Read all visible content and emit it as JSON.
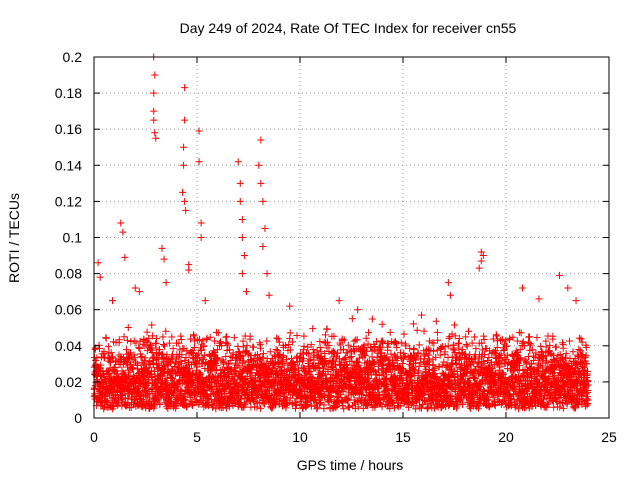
{
  "chart_data": {
    "type": "scatter",
    "title": "Day 249 of 2024, Rate Of TEC Index for receiver cn55",
    "xlabel": "GPS time / hours",
    "ylabel": "ROTI / TECUs",
    "xlim": [
      0,
      25
    ],
    "ylim": [
      0,
      0.2
    ],
    "x_ticks": [
      0,
      5,
      10,
      15,
      20,
      25
    ],
    "x_tick_labels": [
      "0",
      "5",
      "10",
      "15",
      "20",
      "25"
    ],
    "y_ticks": [
      0,
      0.02,
      0.04,
      0.06,
      0.08,
      0.1,
      0.12,
      0.14,
      0.16,
      0.18,
      0.2
    ],
    "y_tick_labels": [
      "0",
      "0.02",
      "0.04",
      "0.06",
      "0.08",
      "0.1",
      "0.12",
      "0.14",
      "0.16",
      "0.18",
      "0.2"
    ],
    "grid": true,
    "marker": "+",
    "marker_color": "#ff0000",
    "series": [
      {
        "name": "ROTI",
        "x_range": [
          0,
          24
        ],
        "typical_range": [
          0.005,
          0.045
        ],
        "baseline_median": 0.018,
        "notable_points": [
          {
            "x": 0.2,
            "y": 0.086
          },
          {
            "x": 0.3,
            "y": 0.078
          },
          {
            "x": 0.9,
            "y": 0.065
          },
          {
            "x": 1.3,
            "y": 0.108
          },
          {
            "x": 1.4,
            "y": 0.103
          },
          {
            "x": 1.5,
            "y": 0.089
          },
          {
            "x": 2.0,
            "y": 0.072
          },
          {
            "x": 2.2,
            "y": 0.07
          },
          {
            "x": 2.9,
            "y": 0.2
          },
          {
            "x": 2.95,
            "y": 0.19
          },
          {
            "x": 2.9,
            "y": 0.18
          },
          {
            "x": 2.9,
            "y": 0.17
          },
          {
            "x": 2.9,
            "y": 0.165
          },
          {
            "x": 2.95,
            "y": 0.158
          },
          {
            "x": 3.0,
            "y": 0.155
          },
          {
            "x": 3.3,
            "y": 0.094
          },
          {
            "x": 3.4,
            "y": 0.088
          },
          {
            "x": 3.5,
            "y": 0.075
          },
          {
            "x": 4.4,
            "y": 0.183
          },
          {
            "x": 4.4,
            "y": 0.165
          },
          {
            "x": 4.35,
            "y": 0.15
          },
          {
            "x": 4.35,
            "y": 0.14
          },
          {
            "x": 4.3,
            "y": 0.125
          },
          {
            "x": 4.4,
            "y": 0.12
          },
          {
            "x": 4.45,
            "y": 0.115
          },
          {
            "x": 4.6,
            "y": 0.085
          },
          {
            "x": 4.6,
            "y": 0.082
          },
          {
            "x": 5.1,
            "y": 0.159
          },
          {
            "x": 5.1,
            "y": 0.142
          },
          {
            "x": 5.2,
            "y": 0.108
          },
          {
            "x": 5.2,
            "y": 0.1
          },
          {
            "x": 5.4,
            "y": 0.065
          },
          {
            "x": 7.0,
            "y": 0.142
          },
          {
            "x": 7.1,
            "y": 0.13
          },
          {
            "x": 7.1,
            "y": 0.12
          },
          {
            "x": 7.2,
            "y": 0.11
          },
          {
            "x": 7.2,
            "y": 0.1
          },
          {
            "x": 7.3,
            "y": 0.09
          },
          {
            "x": 7.2,
            "y": 0.08
          },
          {
            "x": 7.4,
            "y": 0.07
          },
          {
            "x": 8.1,
            "y": 0.154
          },
          {
            "x": 8.0,
            "y": 0.14
          },
          {
            "x": 8.1,
            "y": 0.13
          },
          {
            "x": 8.2,
            "y": 0.12
          },
          {
            "x": 8.3,
            "y": 0.105
          },
          {
            "x": 8.2,
            "y": 0.095
          },
          {
            "x": 8.4,
            "y": 0.08
          },
          {
            "x": 8.5,
            "y": 0.068
          },
          {
            "x": 9.5,
            "y": 0.062
          },
          {
            "x": 11.9,
            "y": 0.065
          },
          {
            "x": 12.8,
            "y": 0.06
          },
          {
            "x": 15.9,
            "y": 0.057
          },
          {
            "x": 17.2,
            "y": 0.075
          },
          {
            "x": 17.3,
            "y": 0.068
          },
          {
            "x": 18.8,
            "y": 0.092
          },
          {
            "x": 18.8,
            "y": 0.087
          },
          {
            "x": 18.7,
            "y": 0.083
          },
          {
            "x": 18.9,
            "y": 0.09
          },
          {
            "x": 20.8,
            "y": 0.072
          },
          {
            "x": 21.6,
            "y": 0.066
          },
          {
            "x": 22.6,
            "y": 0.079
          },
          {
            "x": 23.0,
            "y": 0.072
          },
          {
            "x": 23.4,
            "y": 0.065
          }
        ]
      }
    ]
  }
}
